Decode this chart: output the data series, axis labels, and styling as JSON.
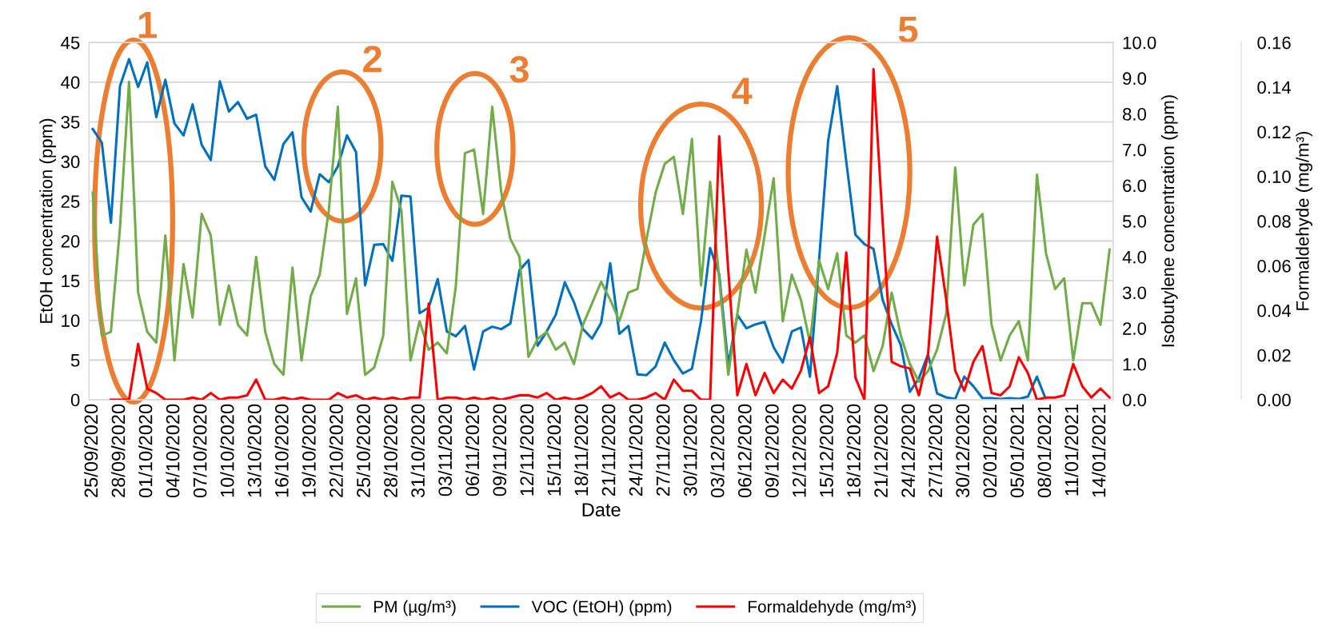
{
  "chart_data": {
    "type": "line",
    "xlabel": "Date",
    "ylabel": "EtOH concentration (ppm)",
    "y2label": "Isobutylene concentration (ppm)",
    "y3label": "Formaldehyde (mg/m³)",
    "categories": [
      "25/09/2020",
      null,
      null,
      "28/09/2020",
      null,
      null,
      "01/10/2020",
      null,
      null,
      "04/10/2020",
      null,
      null,
      "07/10/2020",
      null,
      null,
      "10/10/2020",
      null,
      null,
      "13/10/2020",
      null,
      null,
      "16/10/2020",
      null,
      null,
      "19/10/2020",
      null,
      null,
      "22/10/2020",
      null,
      null,
      "25/10/2020",
      null,
      null,
      "28/10/2020",
      null,
      null,
      "31/10/2020",
      null,
      null,
      "03/11/2020",
      null,
      null,
      "06/11/2020",
      null,
      null,
      "09/11/2020",
      null,
      null,
      "12/11/2020",
      null,
      null,
      "15/11/2020",
      null,
      null,
      "18/11/2020",
      null,
      null,
      "21/11/2020",
      null,
      null,
      "24/11/2020",
      null,
      null,
      "27/11/2020",
      null,
      null,
      "30/11/2020",
      null,
      null,
      "03/12/2020",
      null,
      null,
      "06/12/2020",
      null,
      null,
      "09/12/2020",
      null,
      null,
      "12/12/2020",
      null,
      null,
      "15/12/2020",
      null,
      null,
      "18/12/2020",
      null,
      null,
      "21/12/2020",
      null,
      null,
      "24/12/2020",
      null,
      null,
      "27/12/2020",
      null,
      null,
      "30/12/2020",
      null,
      null,
      "02/01/2021",
      null,
      null,
      "05/01/2021",
      null,
      null,
      "08/01/2021",
      null,
      null,
      "11/01/2021",
      null,
      null,
      "14/01/2021",
      null
    ],
    "series": [
      {
        "name": "PM (µg/m³)",
        "color": "#70ad47",
        "axis": "y2",
        "values": [
          5.8,
          1.8,
          1.9,
          4.8,
          8.9,
          3.0,
          1.9,
          1.6,
          4.6,
          1.1,
          3.8,
          2.3,
          5.2,
          4.6,
          2.1,
          3.2,
          2.1,
          1.8,
          4.0,
          1.9,
          1.0,
          0.7,
          3.7,
          1.1,
          2.9,
          3.5,
          5.3,
          8.2,
          2.4,
          3.4,
          0.7,
          0.9,
          1.8,
          6.1,
          5.3,
          1.1,
          2.2,
          1.4,
          1.6,
          1.3,
          3.2,
          6.9,
          7.0,
          5.2,
          8.2,
          5.8,
          4.5,
          4.0,
          1.2,
          1.7,
          1.9,
          1.4,
          1.6,
          1.0,
          2.1,
          2.7,
          3.3,
          2.8,
          2.2,
          3.0,
          3.1,
          4.5,
          5.8,
          6.6,
          6.8,
          5.2,
          7.3,
          3.2,
          6.1,
          3.4,
          0.7,
          2.4,
          4.2,
          3.0,
          4.6,
          6.2,
          2.2,
          3.5,
          2.8,
          1.6,
          3.9,
          3.1,
          4.1,
          1.8,
          1.6,
          1.8,
          0.8,
          1.5,
          3.0,
          1.8,
          1.0,
          0.5,
          0.8,
          1.4,
          2.4,
          6.5,
          3.2,
          4.9,
          5.2,
          2.1,
          1.1,
          1.8,
          2.2,
          1.1,
          6.3,
          4.1,
          3.1,
          3.4,
          1.1,
          2.7,
          2.7,
          2.1,
          4.2
        ]
      },
      {
        "name": "VOC (EtOH) (ppm)",
        "color": "#0070c0",
        "axis": "y",
        "values": [
          34.1,
          32.4,
          22.3,
          39.5,
          42.9,
          39.4,
          42.5,
          35.6,
          40.3,
          34.8,
          33.3,
          37.2,
          32.1,
          30.2,
          40.1,
          36.3,
          37.5,
          35.4,
          35.9,
          29.4,
          27.7,
          32.2,
          33.7,
          25.5,
          23.7,
          28.4,
          27.4,
          29.4,
          33.3,
          31.2,
          14.4,
          19.5,
          19.6,
          17.5,
          25.7,
          25.6,
          10.9,
          11.6,
          15.2,
          8.6,
          8.0,
          9.3,
          3.8,
          8.6,
          9.2,
          8.9,
          9.6,
          16.3,
          17.6,
          6.8,
          8.6,
          10.7,
          14.8,
          12.3,
          8.9,
          7.7,
          9.7,
          17.2,
          8.3,
          9.3,
          3.2,
          3.1,
          4.2,
          7.2,
          5.0,
          3.3,
          3.9,
          9.9,
          19.1,
          15.8,
          4.4,
          10.7,
          9.0,
          9.5,
          9.8,
          6.6,
          4.7,
          8.6,
          9.1,
          2.9,
          17.5,
          32.6,
          39.5,
          30.0,
          20.8,
          19.6,
          19.0,
          12.6,
          9.5,
          6.9,
          1.0,
          2.7,
          5.7,
          0.8,
          0.3,
          0.1,
          2.9,
          1.7,
          0.2,
          0.2,
          0.1,
          0.2,
          0.1,
          0.4,
          2.9,
          0.0,
          null,
          null,
          null,
          null,
          null,
          null,
          null
        ]
      },
      {
        "name": "Formaldehyde (mg/m³)",
        "color": "#ff0000",
        "axis": "y3",
        "values": [
          null,
          null,
          0.0,
          0.0,
          0.0,
          0.025,
          0.005,
          0.003,
          0.0,
          0.0,
          0.0,
          0.001,
          0.0,
          0.003,
          0.0,
          0.001,
          0.001,
          0.002,
          0.009,
          0.0,
          0.0,
          0.001,
          0.0,
          0.001,
          0.0,
          0.0,
          0.0,
          0.003,
          0.001,
          0.002,
          0.0,
          0.001,
          0.0,
          0.001,
          0.0,
          0.001,
          0.001,
          0.043,
          0.0,
          0.001,
          0.001,
          0.0,
          0.001,
          0.0,
          0.001,
          0.0,
          0.001,
          0.002,
          0.002,
          0.001,
          0.003,
          0.0,
          0.001,
          0.0,
          0.001,
          0.003,
          0.006,
          0.001,
          0.003,
          0.0,
          0.0,
          0.001,
          0.003,
          0.0,
          0.009,
          0.004,
          0.004,
          0.0,
          0.0,
          0.118,
          0.058,
          0.002,
          0.016,
          0.002,
          0.012,
          0.003,
          0.009,
          0.005,
          0.013,
          0.028,
          0.003,
          0.006,
          0.021,
          0.066,
          0.01,
          0.0,
          0.148,
          0.08,
          0.017,
          0.015,
          0.014,
          0.002,
          0.02,
          0.073,
          0.045,
          0.013,
          0.004,
          0.017,
          0.024,
          0.003,
          0.002,
          0.006,
          0.019,
          0.012,
          0.0,
          0.001,
          0.001,
          0.002,
          0.016,
          0.006,
          0.001,
          0.005,
          0.001
        ]
      }
    ],
    "ylim": [
      0,
      45
    ],
    "yticks": [
      0,
      5,
      10,
      15,
      20,
      25,
      30,
      35,
      40,
      45
    ],
    "y2lim": [
      0,
      10
    ],
    "y2ticks": [
      {
        "value": 0,
        "label": "0.0"
      },
      {
        "value": 1,
        "label": "1.0"
      },
      {
        "value": 2,
        "label": "2.0"
      },
      {
        "value": 3,
        "label": "3.0"
      },
      {
        "value": 4,
        "label": "4.0"
      },
      {
        "value": 5,
        "label": "5.0"
      },
      {
        "value": 6,
        "label": "6.0"
      },
      {
        "value": 7,
        "label": "7.0"
      },
      {
        "value": 8,
        "label": "8.0"
      },
      {
        "value": 9,
        "label": "9.0"
      },
      {
        "value": 10,
        "label": "10.0"
      }
    ],
    "y3lim": [
      0,
      0.16
    ],
    "y3ticks": [
      {
        "value": 0,
        "label": "0.00"
      },
      {
        "value": 0.02,
        "label": "0.02"
      },
      {
        "value": 0.04,
        "label": "0.04"
      },
      {
        "value": 0.06,
        "label": "0.06"
      },
      {
        "value": 0.08,
        "label": "0.08"
      },
      {
        "value": 0.1,
        "label": "0.10"
      },
      {
        "value": 0.12,
        "label": "0.12"
      },
      {
        "value": 0.14,
        "label": "0.14"
      },
      {
        "value": 0.16,
        "label": "0.16"
      }
    ],
    "annotations": [
      "1",
      "2",
      "3",
      "4",
      "5"
    ],
    "grid": "y",
    "legend": "bottom",
    "marker": "none",
    "line_style": "solid"
  }
}
